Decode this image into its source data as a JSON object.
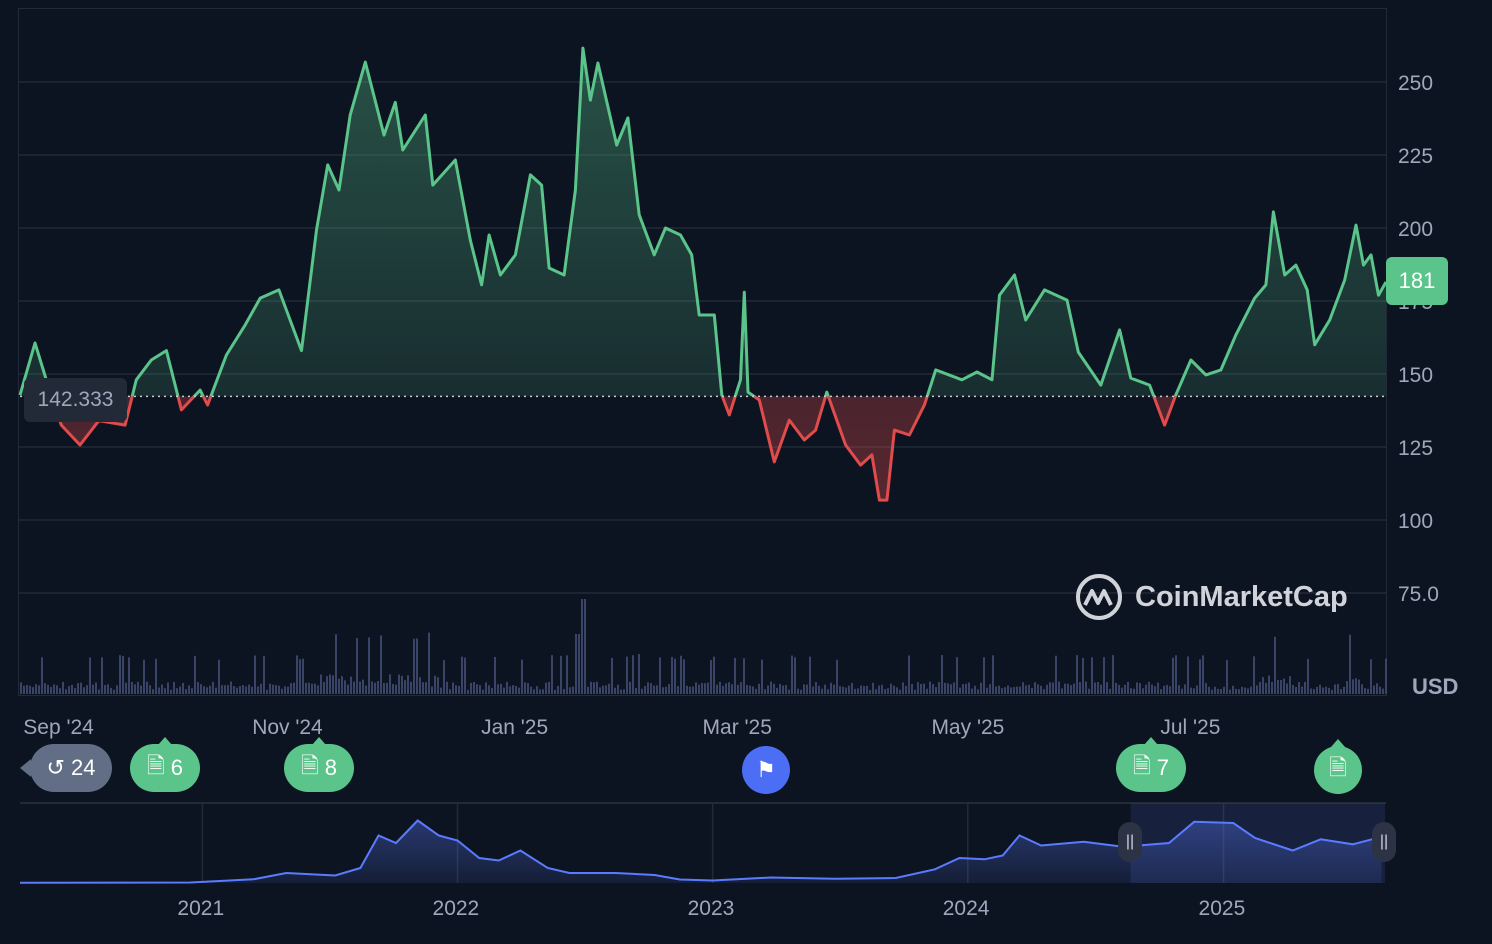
{
  "chart_data": {
    "type": "area",
    "currency": "USD",
    "ylim": [
      60,
      270
    ],
    "y_ticks": [
      "250",
      "225",
      "200",
      "175",
      "150",
      "125",
      "100",
      "75.0"
    ],
    "y_tick_values": [
      250,
      225,
      200,
      175,
      150,
      125,
      100,
      75
    ],
    "x_ticks": [
      "Sep '24",
      "Nov '24",
      "Jan '25",
      "Mar '25",
      "May '25",
      "Jul '25"
    ],
    "x_tick_dates": [
      "2024-09-01",
      "2024-11-01",
      "2025-01-01",
      "2025-03-01",
      "2025-05-01",
      "2025-07-01"
    ],
    "x_range": [
      "2024-08-21",
      "2025-08-20"
    ],
    "baseline": 142.333,
    "baseline_label": "142.333",
    "current_price": "181",
    "grid": true,
    "colors": {
      "up": "#5ac48a",
      "down": "#e04b4b",
      "background": "#0d1421",
      "grid": "#222a38",
      "volume": "#3a4466",
      "navigator": "#5b7bff"
    },
    "series": [
      [
        "2024-08-21",
        142.8
      ],
      [
        "2024-08-25",
        160.6
      ],
      [
        "2024-08-28",
        148
      ],
      [
        "2024-09-01",
        132.5
      ],
      [
        "2024-09-06",
        125.7
      ],
      [
        "2024-09-11",
        134
      ],
      [
        "2024-09-18",
        132.5
      ],
      [
        "2024-09-21",
        148
      ],
      [
        "2024-09-25",
        154.8
      ],
      [
        "2024-09-29",
        158
      ],
      [
        "2024-10-03",
        137.7
      ],
      [
        "2024-10-08",
        144.5
      ],
      [
        "2024-10-10",
        139.4
      ],
      [
        "2024-10-15",
        156.5
      ],
      [
        "2024-10-20",
        166.8
      ],
      [
        "2024-10-24",
        176
      ],
      [
        "2024-10-29",
        178.8
      ],
      [
        "2024-11-04",
        158
      ],
      [
        "2024-11-08",
        199.3
      ],
      [
        "2024-11-11",
        221.6
      ],
      [
        "2024-11-14",
        213
      ],
      [
        "2024-11-17",
        238.7
      ],
      [
        "2024-11-21",
        256.8
      ],
      [
        "2024-11-26",
        231.8
      ],
      [
        "2024-11-29",
        243
      ],
      [
        "2024-12-01",
        226.7
      ],
      [
        "2024-12-07",
        238.7
      ],
      [
        "2024-12-09",
        214.7
      ],
      [
        "2024-12-15",
        223.3
      ],
      [
        "2024-12-19",
        195.9
      ],
      [
        "2024-12-22",
        180.5
      ],
      [
        "2024-12-24",
        197.6
      ],
      [
        "2024-12-27",
        183.9
      ],
      [
        "2024-12-31",
        190.8
      ],
      [
        "2025-01-04",
        218.2
      ],
      [
        "2025-01-07",
        214.7
      ],
      [
        "2025-01-09",
        186.3
      ],
      [
        "2025-01-13",
        183.9
      ],
      [
        "2025-01-16",
        213
      ],
      [
        "2025-01-18",
        261.6
      ],
      [
        "2025-01-20",
        243.8
      ],
      [
        "2025-01-22",
        256.5
      ],
      [
        "2025-01-27",
        228.4
      ],
      [
        "2025-01-30",
        237.7
      ],
      [
        "2025-02-02",
        204.5
      ],
      [
        "2025-02-06",
        190.8
      ],
      [
        "2025-02-09",
        200
      ],
      [
        "2025-02-13",
        197.6
      ],
      [
        "2025-02-16",
        190.8
      ],
      [
        "2025-02-18",
        170.2
      ],
      [
        "2025-02-22",
        170.2
      ],
      [
        "2025-02-24",
        142.8
      ],
      [
        "2025-02-26",
        136
      ],
      [
        "2025-03-01",
        148
      ],
      [
        "2025-03-02",
        178
      ],
      [
        "2025-03-03",
        143.8
      ],
      [
        "2025-03-06",
        141.1
      ],
      [
        "2025-03-10",
        119.9
      ],
      [
        "2025-03-14",
        134.2
      ],
      [
        "2025-03-18",
        127.4
      ],
      [
        "2025-03-21",
        130.8
      ],
      [
        "2025-03-24",
        143.8
      ],
      [
        "2025-03-29",
        125.7
      ],
      [
        "2025-04-02",
        118.8
      ],
      [
        "2025-04-05",
        122.3
      ],
      [
        "2025-04-07",
        106.8
      ],
      [
        "2025-04-09",
        106.8
      ],
      [
        "2025-04-11",
        130.8
      ],
      [
        "2025-04-15",
        129.1
      ],
      [
        "2025-04-19",
        139.4
      ],
      [
        "2025-04-22",
        151.4
      ],
      [
        "2025-04-29",
        148
      ],
      [
        "2025-05-03",
        150.7
      ],
      [
        "2025-05-07",
        148
      ],
      [
        "2025-05-09",
        177
      ],
      [
        "2025-05-13",
        183.9
      ],
      [
        "2025-05-16",
        168.5
      ],
      [
        "2025-05-21",
        178.8
      ],
      [
        "2025-05-27",
        175.3
      ],
      [
        "2025-05-30",
        157.5
      ],
      [
        "2025-06-05",
        146.2
      ],
      [
        "2025-06-10",
        165.1
      ],
      [
        "2025-06-13",
        148.6
      ],
      [
        "2025-06-18",
        146.2
      ],
      [
        "2025-06-22",
        132.5
      ],
      [
        "2025-06-25",
        142.8
      ],
      [
        "2025-06-29",
        154.8
      ],
      [
        "2025-07-03",
        149.7
      ],
      [
        "2025-07-07",
        151.4
      ],
      [
        "2025-07-11",
        163.4
      ],
      [
        "2025-07-16",
        176
      ],
      [
        "2025-07-19",
        180.5
      ],
      [
        "2025-07-21",
        205.5
      ],
      [
        "2025-07-24",
        183.9
      ],
      [
        "2025-07-27",
        187.3
      ],
      [
        "2025-07-30",
        178.8
      ],
      [
        "2025-08-01",
        160
      ],
      [
        "2025-08-05",
        168.5
      ],
      [
        "2025-08-09",
        182.2
      ],
      [
        "2025-08-12",
        201
      ],
      [
        "2025-08-14",
        187.3
      ],
      [
        "2025-08-16",
        190.8
      ],
      [
        "2025-08-18",
        177
      ],
      [
        "2025-08-20",
        181.5
      ]
    ],
    "navigator": {
      "x_ticks": [
        "2021",
        "2022",
        "2023",
        "2024",
        "2025"
      ],
      "x_tick_dates": [
        "2021-01-01",
        "2022-01-01",
        "2023-01-01",
        "2024-01-01",
        "2025-01-01"
      ],
      "x_range": [
        "2020-04-15",
        "2025-08-20"
      ],
      "selection": [
        "2024-08-21",
        "2025-08-20"
      ],
      "series": [
        [
          "2020-04-15",
          1
        ],
        [
          "2020-12-15",
          2
        ],
        [
          "2021-03-15",
          15
        ],
        [
          "2021-05-01",
          40
        ],
        [
          "2021-07-10",
          30
        ],
        [
          "2021-08-15",
          60
        ],
        [
          "2021-09-10",
          190
        ],
        [
          "2021-10-05",
          160
        ],
        [
          "2021-11-05",
          250
        ],
        [
          "2021-12-05",
          190
        ],
        [
          "2022-01-01",
          170
        ],
        [
          "2022-02-01",
          100
        ],
        [
          "2022-03-01",
          90
        ],
        [
          "2022-04-01",
          130
        ],
        [
          "2022-05-10",
          60
        ],
        [
          "2022-06-10",
          40
        ],
        [
          "2022-08-15",
          40
        ],
        [
          "2022-10-10",
          32
        ],
        [
          "2022-11-15",
          14
        ],
        [
          "2023-01-01",
          10
        ],
        [
          "2023-03-25",
          22
        ],
        [
          "2023-06-25",
          17
        ],
        [
          "2023-09-20",
          20
        ],
        [
          "2023-11-15",
          55
        ],
        [
          "2023-12-20",
          100
        ],
        [
          "2024-01-25",
          95
        ],
        [
          "2024-02-20",
          110
        ],
        [
          "2024-03-15",
          190
        ],
        [
          "2024-04-15",
          150
        ],
        [
          "2024-06-15",
          165
        ],
        [
          "2024-08-10",
          145
        ],
        [
          "2024-10-15",
          160
        ],
        [
          "2024-11-20",
          245
        ],
        [
          "2025-01-15",
          240
        ],
        [
          "2025-02-15",
          180
        ],
        [
          "2025-04-10",
          130
        ],
        [
          "2025-05-20",
          175
        ],
        [
          "2025-07-05",
          155
        ],
        [
          "2025-08-15",
          185
        ]
      ]
    }
  },
  "markers": [
    {
      "icon": "history-icon",
      "label": "24",
      "type": "grey"
    },
    {
      "icon": "document-icon",
      "label": "6",
      "type": "green"
    },
    {
      "icon": "document-icon",
      "label": "8",
      "type": "green"
    },
    {
      "icon": "flag-icon",
      "label": "",
      "type": "blue"
    },
    {
      "icon": "document-icon",
      "label": "7",
      "type": "green"
    },
    {
      "icon": "document-icon",
      "label": "",
      "type": "green"
    }
  ],
  "brand": "CoinMarketCap",
  "currency_label": "USD"
}
